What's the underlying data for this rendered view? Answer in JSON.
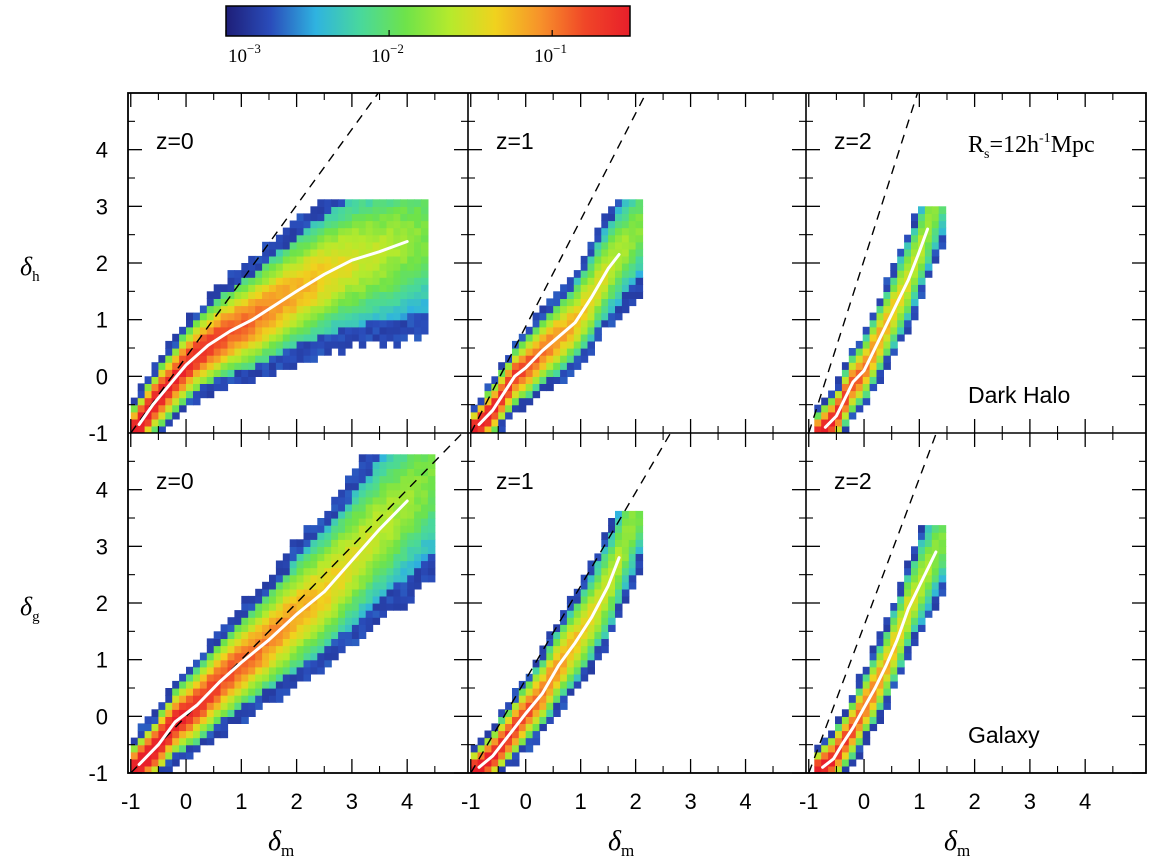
{
  "colors": {
    "colormap": [
      "#1e1e78",
      "#2a4dbb",
      "#2fb3e0",
      "#49d89c",
      "#6ee34a",
      "#b6ea2c",
      "#f0d21e",
      "#f7922a",
      "#f04628",
      "#e81f2a"
    ],
    "dashed_line": "#000000",
    "median_line": "#ffffff"
  },
  "colorbar": {
    "scale": "log",
    "range": [
      0.001,
      0.3
    ],
    "ticks": [
      {
        "value": 0.001,
        "base": "10",
        "exponent": "−3"
      },
      {
        "value": 0.01,
        "base": "10",
        "exponent": "−2"
      },
      {
        "value": 0.1,
        "base": "10",
        "exponent": "−1"
      }
    ]
  },
  "axes": {
    "xlim": [
      -1.05,
      5.1
    ],
    "ylim": [
      -1.0,
      5.0
    ],
    "xticks": [
      "-1",
      "0",
      "1",
      "2",
      "3",
      "4"
    ],
    "yticks": [
      "-1",
      "0",
      "1",
      "2",
      "3",
      "4"
    ],
    "xlabel": {
      "main": "δ",
      "sub": "m"
    },
    "ylabel_top": {
      "main": "δ",
      "sub": "h"
    },
    "ylabel_bottom": {
      "main": "δ",
      "sub": "g"
    }
  },
  "annotations": {
    "smoothing": {
      "main": "R",
      "sub": "s",
      "rest": "=12h",
      "sup": "-1",
      "tail": "Mpc"
    },
    "dark_halo": "Dark Halo",
    "galaxy": "Galaxy"
  },
  "chart_data": [
    {
      "type": "heatmap",
      "row": "Dark Halo",
      "z_label": "z=0",
      "dashed_slope": 1.34,
      "median": {
        "x": [
          -0.85,
          -0.6,
          -0.3,
          0.0,
          0.4,
          0.8,
          1.2,
          1.6,
          2.0,
          2.5,
          3.0,
          3.5,
          4.0
        ],
        "y": [
          -0.85,
          -0.5,
          -0.15,
          0.2,
          0.55,
          0.8,
          1.0,
          1.25,
          1.5,
          1.8,
          2.05,
          2.2,
          2.38
        ]
      },
      "extent": {
        "x": [
          -1.0,
          4.3
        ],
        "y": [
          -1.0,
          3.1
        ]
      }
    },
    {
      "type": "heatmap",
      "row": "Dark Halo",
      "z_label": "z=1",
      "dashed_slope": 1.88,
      "median": {
        "x": [
          -0.85,
          -0.6,
          -0.4,
          -0.2,
          0.0,
          0.3,
          0.6,
          0.9,
          1.2,
          1.5,
          1.7
        ],
        "y": [
          -0.85,
          -0.6,
          -0.3,
          0.0,
          0.15,
          0.45,
          0.7,
          0.95,
          1.4,
          1.9,
          2.15
        ]
      },
      "extent": {
        "x": [
          -1.0,
          2.1
        ],
        "y": [
          -1.0,
          3.1
        ]
      }
    },
    {
      "type": "heatmap",
      "row": "Dark Halo",
      "z_label": "z=2",
      "dashed_slope": 3.05,
      "median": {
        "x": [
          -0.7,
          -0.5,
          -0.35,
          -0.2,
          0.0,
          0.2,
          0.4,
          0.6,
          0.8,
          1.0,
          1.15
        ],
        "y": [
          -0.9,
          -0.7,
          -0.4,
          -0.1,
          0.1,
          0.5,
          0.9,
          1.3,
          1.7,
          2.2,
          2.6
        ]
      },
      "extent": {
        "x": [
          -0.9,
          1.4
        ],
        "y": [
          -1.0,
          2.9
        ]
      }
    },
    {
      "type": "heatmap",
      "row": "Galaxy",
      "z_label": "z=0",
      "dashed_slope": 1.0,
      "median": {
        "x": [
          -0.85,
          -0.5,
          -0.2,
          0.2,
          0.6,
          1.0,
          1.5,
          2.0,
          2.5,
          3.0,
          3.5,
          4.0
        ],
        "y": [
          -0.85,
          -0.5,
          -0.1,
          0.2,
          0.6,
          0.95,
          1.35,
          1.8,
          2.2,
          2.75,
          3.3,
          3.8
        ]
      },
      "extent": {
        "x": [
          -1.0,
          4.4
        ],
        "y": [
          -1.0,
          4.6
        ]
      }
    },
    {
      "type": "heatmap",
      "row": "Galaxy",
      "z_label": "z=1",
      "dashed_slope": 1.65,
      "median": {
        "x": [
          -0.85,
          -0.6,
          -0.4,
          -0.2,
          0.0,
          0.3,
          0.6,
          0.9,
          1.2,
          1.5,
          1.7
        ],
        "y": [
          -0.9,
          -0.7,
          -0.45,
          -0.2,
          0.05,
          0.4,
          0.9,
          1.3,
          1.75,
          2.3,
          2.8
        ]
      },
      "extent": {
        "x": [
          -1.0,
          2.1
        ],
        "y": [
          -1.0,
          3.6
        ]
      }
    },
    {
      "type": "heatmap",
      "row": "Galaxy",
      "z_label": "z=2",
      "dashed_slope": 2.6,
      "median": {
        "x": [
          -0.75,
          -0.55,
          -0.4,
          -0.2,
          0.0,
          0.2,
          0.4,
          0.6,
          0.8,
          1.0,
          1.3
        ],
        "y": [
          -0.9,
          -0.75,
          -0.5,
          -0.2,
          0.15,
          0.5,
          0.9,
          1.35,
          1.9,
          2.3,
          2.9
        ]
      },
      "extent": {
        "x": [
          -0.9,
          1.4
        ],
        "y": [
          -1.0,
          3.3
        ]
      }
    }
  ]
}
